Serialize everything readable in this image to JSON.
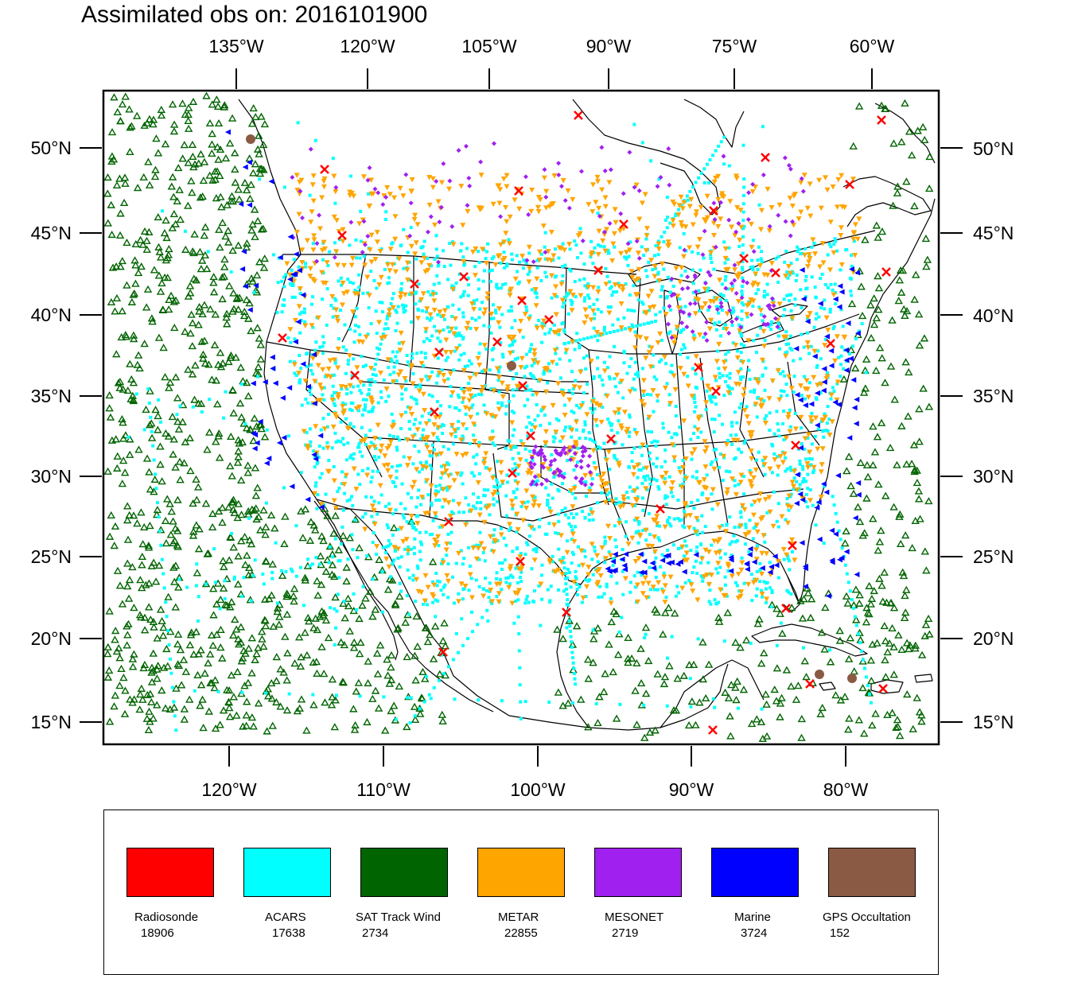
{
  "title": "Assimilated obs on: 2016101900",
  "map": {
    "projection": "lambert-conformal",
    "top_lon_labels": [
      "135°W",
      "120°W",
      "105°W",
      "90°W",
      "75°W",
      "60°W"
    ],
    "bottom_lon_labels": [
      "120°W",
      "110°W",
      "100°W",
      "90°W",
      "80°W"
    ],
    "left_lat_labels": [
      "50°N",
      "45°N",
      "40°N",
      "35°N",
      "30°N",
      "25°N",
      "20°N",
      "15°N"
    ],
    "right_lat_labels": [
      "50°N",
      "45°N",
      "40°N",
      "35°N",
      "30°N",
      "25°N",
      "20°N",
      "15°N"
    ],
    "background_color": "#ffffff",
    "coastline_color": "#000000"
  },
  "legend": {
    "items": [
      {
        "label": "Radiosonde",
        "count": "18906",
        "color": "#ff0000",
        "marker": "x"
      },
      {
        "label": "ACARS",
        "count": "17638",
        "color": "#00ffff",
        "marker": "square"
      },
      {
        "label": "SAT Track Wind",
        "count": "2734",
        "color": "#006400",
        "marker": "triangle-up"
      },
      {
        "label": "METAR",
        "count": "22855",
        "color": "#ffa500",
        "marker": "triangle-down"
      },
      {
        "label": "MESONET",
        "count": "2719",
        "color": "#a020f0",
        "marker": "diamond"
      },
      {
        "label": "Marine",
        "count": "3724",
        "color": "#0000ff",
        "marker": "triangle-left"
      },
      {
        "label": "GPS Occultation",
        "count": "152",
        "color": "#8b5a44",
        "marker": "circle"
      }
    ]
  }
}
